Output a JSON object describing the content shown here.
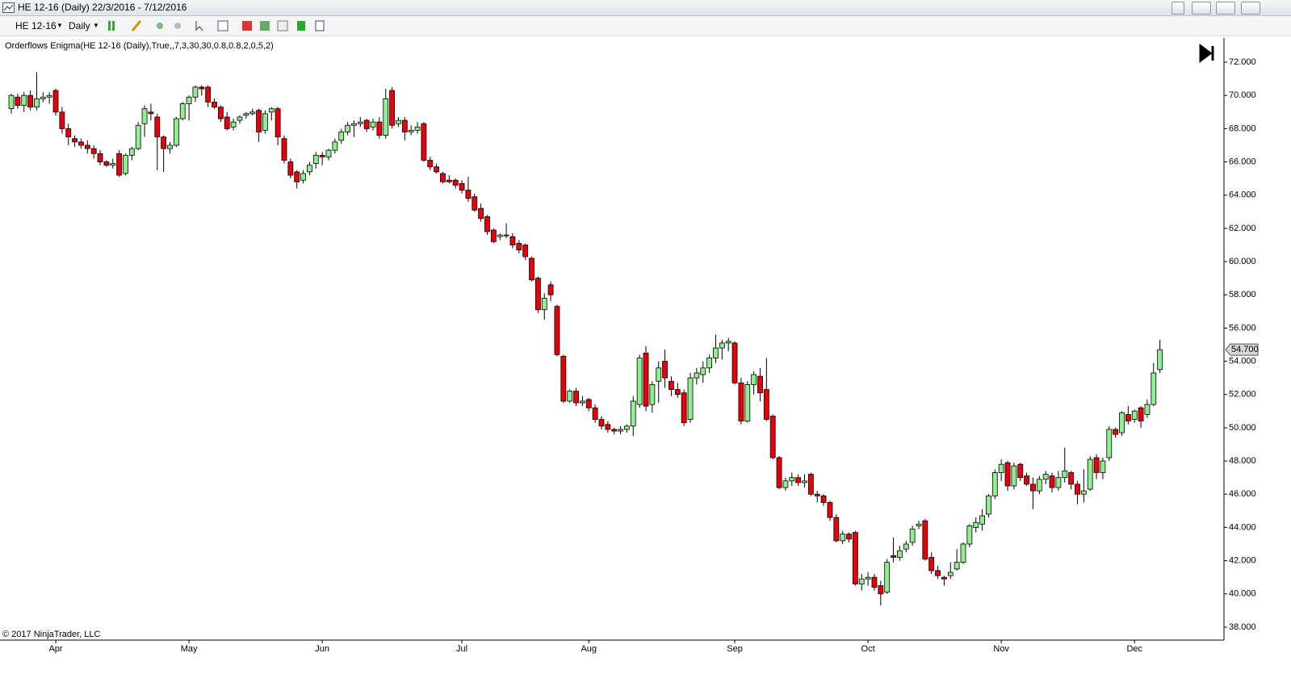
{
  "window_title": "HE 12-16 (Daily)  22/3/2016 - 7/12/2016",
  "toolbar": {
    "instrument": "HE 12-16",
    "period": "Daily"
  },
  "chart_data": {
    "type": "candlestick",
    "indicator_label": "Orderflows Enigma(HE 12-16 (Daily),True,,7,3,30,30,0.8,0.8,2,0,5,2)",
    "copyright": "© 2017 NinjaTrader, LLC",
    "up_color": "#90ee90",
    "down_color": "#e8000b",
    "ylim": [
      37.22,
      73.46
    ],
    "yticks": [
      {
        "value": 38,
        "label": "38.000"
      },
      {
        "value": 40,
        "label": "40.000"
      },
      {
        "value": 42,
        "label": "42.000"
      },
      {
        "value": 44,
        "label": "44.000"
      },
      {
        "value": 46,
        "label": "46.000"
      },
      {
        "value": 48,
        "label": "48.000"
      },
      {
        "value": 50,
        "label": "50.000"
      },
      {
        "value": 52,
        "label": "52.000"
      },
      {
        "value": 54,
        "label": "54.000"
      },
      {
        "value": 56,
        "label": "56.000"
      },
      {
        "value": 58,
        "label": "58.000"
      },
      {
        "value": 60,
        "label": "60.000"
      },
      {
        "value": 62,
        "label": "62.000"
      },
      {
        "value": 64,
        "label": "64.000"
      },
      {
        "value": 66,
        "label": "66.000"
      },
      {
        "value": 68,
        "label": "68.000"
      },
      {
        "value": 70,
        "label": "70.000"
      },
      {
        "value": 72,
        "label": "72.000"
      }
    ],
    "last_price": {
      "value": 54.7,
      "label": "54.700"
    },
    "categories": [
      null,
      null,
      null,
      null,
      null,
      null,
      null,
      "Apr",
      null,
      null,
      null,
      null,
      null,
      null,
      null,
      null,
      null,
      null,
      null,
      null,
      null,
      null,
      null,
      null,
      null,
      null,
      null,
      null,
      "May",
      null,
      null,
      null,
      null,
      null,
      null,
      null,
      null,
      null,
      null,
      null,
      null,
      null,
      null,
      null,
      null,
      null,
      null,
      null,
      null,
      "Jun",
      null,
      null,
      null,
      null,
      null,
      null,
      null,
      null,
      null,
      null,
      null,
      null,
      null,
      null,
      null,
      null,
      null,
      null,
      null,
      null,
      null,
      "Jul",
      null,
      null,
      null,
      null,
      null,
      null,
      null,
      null,
      null,
      null,
      null,
      null,
      null,
      null,
      null,
      null,
      null,
      null,
      null,
      "Aug",
      null,
      null,
      null,
      null,
      null,
      null,
      null,
      null,
      null,
      null,
      null,
      null,
      null,
      null,
      null,
      null,
      null,
      null,
      null,
      null,
      null,
      null,
      "Sep",
      null,
      null,
      null,
      null,
      null,
      null,
      null,
      null,
      null,
      null,
      null,
      null,
      null,
      null,
      null,
      null,
      null,
      null,
      null,
      null,
      "Oct",
      null,
      null,
      null,
      null,
      null,
      null,
      null,
      null,
      null,
      null,
      null,
      null,
      null,
      null,
      null,
      null,
      null,
      null,
      null,
      null,
      "Nov",
      null,
      null,
      null,
      null,
      null,
      null,
      null,
      null,
      null,
      null,
      null,
      null,
      null,
      null,
      null,
      null,
      null,
      null,
      null,
      null,
      "Dec",
      null,
      null,
      null,
      null
    ],
    "ohlc": [
      [
        69.2,
        70.1,
        68.9,
        70.0
      ],
      [
        69.9,
        70.1,
        69.2,
        69.4
      ],
      [
        69.4,
        70.2,
        69.0,
        70.0
      ],
      [
        70.0,
        70.3,
        69.1,
        69.3
      ],
      [
        69.3,
        71.4,
        69.1,
        69.8
      ],
      [
        69.8,
        70.2,
        69.6,
        69.9
      ],
      [
        69.9,
        70.2,
        69.5,
        70.0
      ],
      [
        70.3,
        70.4,
        68.8,
        69.0
      ],
      [
        69.0,
        69.3,
        67.7,
        68.0
      ],
      [
        68.0,
        68.3,
        67.0,
        67.5
      ],
      [
        67.4,
        67.6,
        66.9,
        67.2
      ],
      [
        67.2,
        67.4,
        66.8,
        67.0
      ],
      [
        67.0,
        67.3,
        66.5,
        66.8
      ],
      [
        66.8,
        67.0,
        66.2,
        66.5
      ],
      [
        66.5,
        66.7,
        65.8,
        66.0
      ],
      [
        66.0,
        66.1,
        65.7,
        65.8
      ],
      [
        65.8,
        66.2,
        65.6,
        65.9
      ],
      [
        66.5,
        66.7,
        65.1,
        65.2
      ],
      [
        65.3,
        66.5,
        65.2,
        66.4
      ],
      [
        66.4,
        66.9,
        66.1,
        66.8
      ],
      [
        66.8,
        68.4,
        66.7,
        68.2
      ],
      [
        68.3,
        69.4,
        67.5,
        69.2
      ],
      [
        69.0,
        69.5,
        68.5,
        68.9
      ],
      [
        68.7,
        68.9,
        65.5,
        67.5
      ],
      [
        67.5,
        67.6,
        65.4,
        66.8
      ],
      [
        66.8,
        67.2,
        66.5,
        67.0
      ],
      [
        67.0,
        68.7,
        66.9,
        68.6
      ],
      [
        68.6,
        69.6,
        68.5,
        69.5
      ],
      [
        69.5,
        70.0,
        68.5,
        69.9
      ],
      [
        69.9,
        70.6,
        69.6,
        70.5
      ],
      [
        70.5,
        70.6,
        70.0,
        70.4
      ],
      [
        70.5,
        70.6,
        69.3,
        69.6
      ],
      [
        69.6,
        69.8,
        69.2,
        69.3
      ],
      [
        69.3,
        69.4,
        68.4,
        68.6
      ],
      [
        68.7,
        69.0,
        67.9,
        68.0
      ],
      [
        68.1,
        68.6,
        67.9,
        68.4
      ],
      [
        68.5,
        68.8,
        68.3,
        68.7
      ],
      [
        68.8,
        69.0,
        68.6,
        68.9
      ],
      [
        68.9,
        69.2,
        68.8,
        69.0
      ],
      [
        69.1,
        69.2,
        67.2,
        67.8
      ],
      [
        67.9,
        69.1,
        67.7,
        68.9
      ],
      [
        69.0,
        69.3,
        68.5,
        69.2
      ],
      [
        69.2,
        69.3,
        67.0,
        67.5
      ],
      [
        67.4,
        67.6,
        65.9,
        66.1
      ],
      [
        66.0,
        66.2,
        65.0,
        65.2
      ],
      [
        65.4,
        65.5,
        64.4,
        64.8
      ],
      [
        64.9,
        65.5,
        64.7,
        65.3
      ],
      [
        65.4,
        66.0,
        65.2,
        65.8
      ],
      [
        65.9,
        66.6,
        65.6,
        66.4
      ],
      [
        66.4,
        66.6,
        65.8,
        66.3
      ],
      [
        66.3,
        66.8,
        66.1,
        66.7
      ],
      [
        66.7,
        67.4,
        66.5,
        67.2
      ],
      [
        67.3,
        68.0,
        67.1,
        67.8
      ],
      [
        67.8,
        68.4,
        67.6,
        68.2
      ],
      [
        68.2,
        68.5,
        67.5,
        68.3
      ],
      [
        68.3,
        68.7,
        68.1,
        68.4
      ],
      [
        68.5,
        68.6,
        67.8,
        68.0
      ],
      [
        68.1,
        68.6,
        67.9,
        68.4
      ],
      [
        68.4,
        68.7,
        67.4,
        67.6
      ],
      [
        67.6,
        70.4,
        67.4,
        69.8
      ],
      [
        70.3,
        70.5,
        68.0,
        68.2
      ],
      [
        68.3,
        68.7,
        68.1,
        68.5
      ],
      [
        68.5,
        68.7,
        67.3,
        67.8
      ],
      [
        67.8,
        68.2,
        67.6,
        67.9
      ],
      [
        67.9,
        68.4,
        67.7,
        68.1
      ],
      [
        68.3,
        68.4,
        66.0,
        66.1
      ],
      [
        66.1,
        66.3,
        65.5,
        65.7
      ],
      [
        65.7,
        65.9,
        65.3,
        65.4
      ],
      [
        65.3,
        65.4,
        64.7,
        64.8
      ],
      [
        64.9,
        65.2,
        64.7,
        64.8
      ],
      [
        64.9,
        65.0,
        64.4,
        64.6
      ],
      [
        64.7,
        64.9,
        64.1,
        64.3
      ],
      [
        64.3,
        65.1,
        63.6,
        63.8
      ],
      [
        63.9,
        64.1,
        63.0,
        63.1
      ],
      [
        63.2,
        63.5,
        62.4,
        62.6
      ],
      [
        62.7,
        62.8,
        61.6,
        61.8
      ],
      [
        61.9,
        62.0,
        61.1,
        61.2
      ],
      [
        61.5,
        61.7,
        61.3,
        61.6
      ],
      [
        61.6,
        62.3,
        61.4,
        61.6
      ],
      [
        61.5,
        61.7,
        60.8,
        61.0
      ],
      [
        61.1,
        61.3,
        60.5,
        60.7
      ],
      [
        61.0,
        61.1,
        60.1,
        60.3
      ],
      [
        60.2,
        60.3,
        58.8,
        58.9
      ],
      [
        59.0,
        59.1,
        56.9,
        57.1
      ],
      [
        57.1,
        58.1,
        56.5,
        57.8
      ],
      [
        58.6,
        58.8,
        57.6,
        58.0
      ],
      [
        57.3,
        57.4,
        54.3,
        54.4
      ],
      [
        54.3,
        54.4,
        51.5,
        51.6
      ],
      [
        51.6,
        52.3,
        51.5,
        52.2
      ],
      [
        52.2,
        52.4,
        51.3,
        51.5
      ],
      [
        51.5,
        51.9,
        51.3,
        51.6
      ],
      [
        51.7,
        51.8,
        51.0,
        51.2
      ],
      [
        51.2,
        51.4,
        50.3,
        50.5
      ],
      [
        50.5,
        50.7,
        49.9,
        50.1
      ],
      [
        50.2,
        50.4,
        49.7,
        49.9
      ],
      [
        49.9,
        50.0,
        49.6,
        49.8
      ],
      [
        49.8,
        50.1,
        49.6,
        49.9
      ],
      [
        49.9,
        50.2,
        49.7,
        50.1
      ],
      [
        50.1,
        51.9,
        49.5,
        51.6
      ],
      [
        51.4,
        54.4,
        51.2,
        54.2
      ],
      [
        54.5,
        54.9,
        51.0,
        51.3
      ],
      [
        51.4,
        52.8,
        50.9,
        52.6
      ],
      [
        52.8,
        54.0,
        51.5,
        53.6
      ],
      [
        54.0,
        54.7,
        52.4,
        53.0
      ],
      [
        52.8,
        53.1,
        51.9,
        52.3
      ],
      [
        52.3,
        52.7,
        51.8,
        52.0
      ],
      [
        52.1,
        52.3,
        50.1,
        50.3
      ],
      [
        50.5,
        53.3,
        50.3,
        53.0
      ],
      [
        53.0,
        53.6,
        52.6,
        53.3
      ],
      [
        53.2,
        54.0,
        52.7,
        53.6
      ],
      [
        53.6,
        54.4,
        53.3,
        54.2
      ],
      [
        54.2,
        55.6,
        53.9,
        54.8
      ],
      [
        54.8,
        55.3,
        54.1,
        55.1
      ],
      [
        55.1,
        55.4,
        54.6,
        55.2
      ],
      [
        55.1,
        55.2,
        52.6,
        52.7
      ],
      [
        52.7,
        53.0,
        50.2,
        50.4
      ],
      [
        50.4,
        52.8,
        50.3,
        52.6
      ],
      [
        52.6,
        53.4,
        52.0,
        53.2
      ],
      [
        53.1,
        53.6,
        51.6,
        52.1
      ],
      [
        52.3,
        54.2,
        50.4,
        50.5
      ],
      [
        50.7,
        50.8,
        48.1,
        48.2
      ],
      [
        48.2,
        48.3,
        46.3,
        46.4
      ],
      [
        46.4,
        47.0,
        46.2,
        46.8
      ],
      [
        46.8,
        47.3,
        46.5,
        47.0
      ],
      [
        47.0,
        47.2,
        46.5,
        46.7
      ],
      [
        46.7,
        47.2,
        46.4,
        46.8
      ],
      [
        47.2,
        47.3,
        45.9,
        46.0
      ],
      [
        46.0,
        46.2,
        45.5,
        45.9
      ],
      [
        45.9,
        46.0,
        45.3,
        45.5
      ],
      [
        45.5,
        45.6,
        44.4,
        44.6
      ],
      [
        44.6,
        44.8,
        43.1,
        43.2
      ],
      [
        43.2,
        43.8,
        43.0,
        43.6
      ],
      [
        43.6,
        43.7,
        43.1,
        43.3
      ],
      [
        43.7,
        43.8,
        40.5,
        40.6
      ],
      [
        40.6,
        41.2,
        40.2,
        40.9
      ],
      [
        40.9,
        41.3,
        40.5,
        41.0
      ],
      [
        41.0,
        41.2,
        40.2,
        40.4
      ],
      [
        40.5,
        40.8,
        39.3,
        40.0
      ],
      [
        40.1,
        42.1,
        40.0,
        41.9
      ],
      [
        42.3,
        43.4,
        41.9,
        42.2
      ],
      [
        42.2,
        42.9,
        42.0,
        42.6
      ],
      [
        42.7,
        43.2,
        42.5,
        43.0
      ],
      [
        43.1,
        44.1,
        42.9,
        43.9
      ],
      [
        44.1,
        44.4,
        43.9,
        44.2
      ],
      [
        44.4,
        44.5,
        42.0,
        42.1
      ],
      [
        42.2,
        42.5,
        41.2,
        41.4
      ],
      [
        41.4,
        41.7,
        40.9,
        41.1
      ],
      [
        41.0,
        41.1,
        40.5,
        40.9
      ],
      [
        41.1,
        41.9,
        40.9,
        41.3
      ],
      [
        41.5,
        42.7,
        41.4,
        41.9
      ],
      [
        41.9,
        43.1,
        41.8,
        43.0
      ],
      [
        43.0,
        44.2,
        42.8,
        44.1
      ],
      [
        44.0,
        44.6,
        43.7,
        44.3
      ],
      [
        44.2,
        45.1,
        43.8,
        44.7
      ],
      [
        44.8,
        46.0,
        44.6,
        45.9
      ],
      [
        45.9,
        47.5,
        45.7,
        47.3
      ],
      [
        47.3,
        48.1,
        46.8,
        47.8
      ],
      [
        47.9,
        48.0,
        46.2,
        46.5
      ],
      [
        46.5,
        47.9,
        46.3,
        47.7
      ],
      [
        47.8,
        47.9,
        46.8,
        47.0
      ],
      [
        47.1,
        47.3,
        46.5,
        46.6
      ],
      [
        46.6,
        47.0,
        45.1,
        46.2
      ],
      [
        46.2,
        47.1,
        46.0,
        46.9
      ],
      [
        46.9,
        47.4,
        46.6,
        47.2
      ],
      [
        47.1,
        47.3,
        46.1,
        46.4
      ],
      [
        46.4,
        47.4,
        46.2,
        47.0
      ],
      [
        47.0,
        48.8,
        46.7,
        47.4
      ],
      [
        47.3,
        47.4,
        46.3,
        46.6
      ],
      [
        46.6,
        46.8,
        45.4,
        46.0
      ],
      [
        46.0,
        47.5,
        45.5,
        46.2
      ],
      [
        46.3,
        48.3,
        46.2,
        48.1
      ],
      [
        48.2,
        48.4,
        46.9,
        47.3
      ],
      [
        47.3,
        48.2,
        46.9,
        48.0
      ],
      [
        48.2,
        50.1,
        48.0,
        49.9
      ],
      [
        49.9,
        50.0,
        49.4,
        49.6
      ],
      [
        49.7,
        51.0,
        49.5,
        50.9
      ],
      [
        50.8,
        51.3,
        50.2,
        50.4
      ],
      [
        50.5,
        51.1,
        50.3,
        51.0
      ],
      [
        51.2,
        51.3,
        50.0,
        50.4
      ],
      [
        50.8,
        51.7,
        50.6,
        51.4
      ],
      [
        51.4,
        53.9,
        51.3,
        53.3
      ],
      [
        53.5,
        55.3,
        53.3,
        54.7
      ]
    ]
  }
}
